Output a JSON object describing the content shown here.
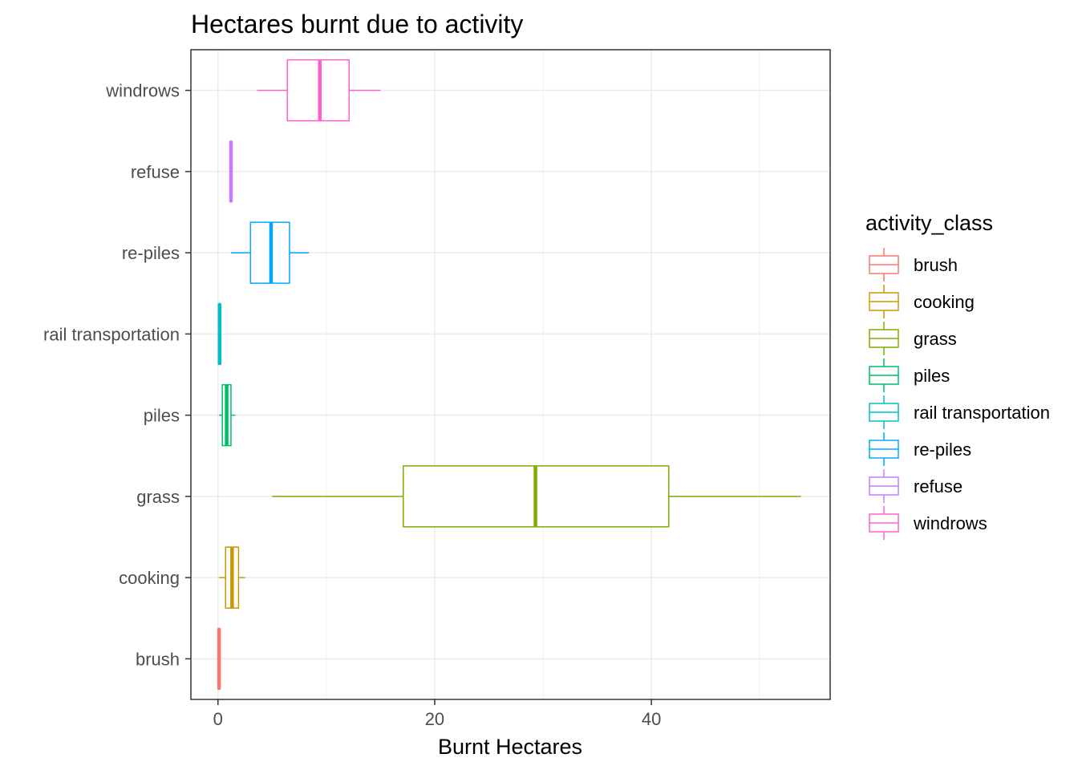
{
  "chart_data": {
    "type": "boxplot",
    "orientation": "horizontal",
    "title": "Hectares burnt due to activity",
    "xlabel": "Burnt Hectares",
    "ylabel": "",
    "xlim": [
      -2.5,
      56.5
    ],
    "xticks": [
      0,
      20,
      40
    ],
    "grid": true,
    "legend": {
      "title": "activity_class",
      "position": "right"
    },
    "categories": [
      "brush",
      "cooking",
      "grass",
      "piles",
      "rail transportation",
      "re-piles",
      "refuse",
      "windrows"
    ],
    "series": [
      {
        "name": "brush",
        "color": "#F8766D",
        "min": 0.02,
        "q1": 0.05,
        "median": 0.1,
        "q3": 0.15,
        "max": 0.2
      },
      {
        "name": "cooking",
        "color": "#CD9600",
        "min": 0.1,
        "q1": 0.7,
        "median": 1.3,
        "q3": 1.9,
        "max": 2.5
      },
      {
        "name": "grass",
        "color": "#7CAE00",
        "min": 5,
        "q1": 17.1,
        "median": 29.3,
        "q3": 41.6,
        "max": 53.8
      },
      {
        "name": "piles",
        "color": "#00BE67",
        "min": 0.1,
        "q1": 0.4,
        "median": 0.8,
        "q3": 1.2,
        "max": 1.6
      },
      {
        "name": "rail transportation",
        "color": "#00BFC4",
        "min": 0.05,
        "q1": 0.1,
        "median": 0.15,
        "q3": 0.2,
        "max": 0.25
      },
      {
        "name": "re-piles",
        "color": "#00A9FF",
        "min": 1.2,
        "q1": 3,
        "median": 4.9,
        "q3": 6.6,
        "max": 8.4
      },
      {
        "name": "refuse",
        "color": "#C77CFF",
        "min": 1.1,
        "q1": 1.15,
        "median": 1.2,
        "q3": 1.25,
        "max": 1.3
      },
      {
        "name": "windrows",
        "color": "#FF61CC",
        "min": 3.6,
        "q1": 6.4,
        "median": 9.4,
        "q3": 12.1,
        "max": 15
      }
    ]
  }
}
